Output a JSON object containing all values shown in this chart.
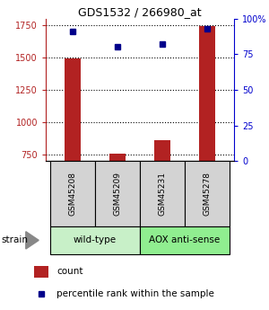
{
  "title": "GDS1532 / 266980_at",
  "samples": [
    "GSM45208",
    "GSM45209",
    "GSM45231",
    "GSM45278"
  ],
  "counts": [
    1490,
    760,
    860,
    1740
  ],
  "percentiles": [
    91,
    80,
    82,
    93
  ],
  "ylim_left": [
    700,
    1800
  ],
  "ylim_right": [
    0,
    100
  ],
  "yticks_left": [
    750,
    1000,
    1250,
    1500,
    1750
  ],
  "yticks_right": [
    0,
    25,
    50,
    75,
    100
  ],
  "bar_color": "#b22222",
  "point_color": "#00008b",
  "bar_baseline": 700,
  "strain_groups": [
    {
      "label": "wild-type",
      "indices": [
        0,
        1
      ],
      "color": "#c8f0c8"
    },
    {
      "label": "AOX anti-sense",
      "indices": [
        2,
        3
      ],
      "color": "#90ee90"
    }
  ],
  "legend_items": [
    {
      "label": "count",
      "color": "#b22222"
    },
    {
      "label": "percentile rank within the sample",
      "color": "#00008b"
    }
  ],
  "strain_label": "strain",
  "sample_box_color": "#d3d3d3",
  "axis_left_color": "#b22222",
  "axis_right_color": "#0000cd",
  "bar_width": 0.35
}
